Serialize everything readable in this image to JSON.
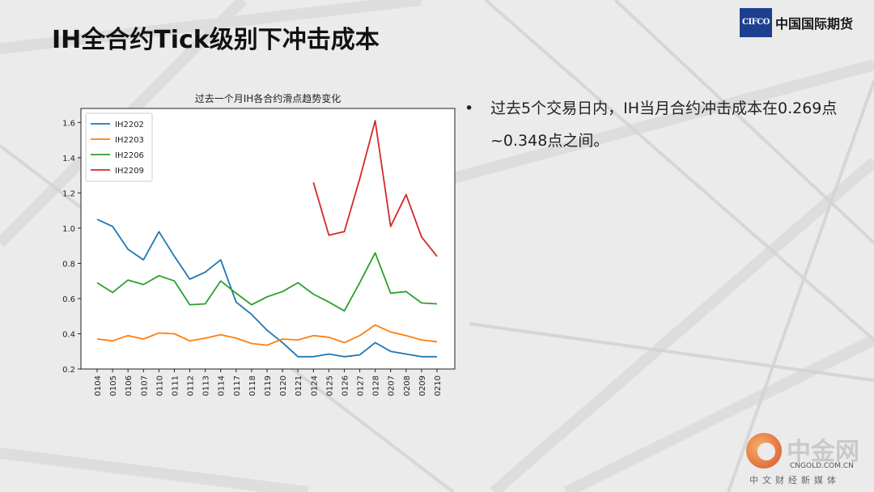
{
  "slide": {
    "title": "IH全合约Tick级别下冲击成本",
    "brand_box": "CIFCO",
    "brand_name": "中国国际期货",
    "bullet_symbol": "•",
    "bullet_text": "过去5个交易日内，IH当月合约冲击成本在0.269点~0.348点之间。"
  },
  "watermark": {
    "name": "中金网",
    "url": "CNGOLD.COM.CN",
    "sub": "中文财经新媒体"
  },
  "colors": {
    "IH2202": "#1f77b4",
    "IH2203": "#ff7f0e",
    "IH2206": "#2ca02c",
    "IH2209": "#d62728"
  },
  "chart_data": {
    "type": "line",
    "title": "过去一个月IH各合约滑点趋势变化",
    "xlabel": "",
    "ylabel": "",
    "categories": [
      "0104",
      "0105",
      "0106",
      "0107",
      "0110",
      "0111",
      "0112",
      "0113",
      "0114",
      "0117",
      "0118",
      "0119",
      "0120",
      "0121",
      "0124",
      "0125",
      "0126",
      "0127",
      "0128",
      "0207",
      "0208",
      "0209",
      "0210"
    ],
    "ylim": [
      0.2,
      1.68
    ],
    "yticks": [
      "0.2",
      "0.4",
      "0.6",
      "0.8",
      "1.0",
      "1.2",
      "1.4",
      "1.6"
    ],
    "grid": false,
    "legend": "top-left",
    "series": [
      {
        "name": "IH2202",
        "values": [
          1.05,
          1.01,
          0.88,
          0.82,
          0.98,
          0.84,
          0.71,
          0.75,
          0.82,
          0.58,
          0.51,
          0.42,
          0.35,
          0.27,
          0.27,
          0.285,
          0.27,
          0.28,
          0.35,
          0.3,
          0.285,
          0.27,
          0.27
        ]
      },
      {
        "name": "IH2203",
        "values": [
          0.37,
          0.36,
          0.39,
          0.37,
          0.405,
          0.4,
          0.36,
          0.375,
          0.395,
          0.375,
          0.345,
          0.335,
          0.37,
          0.365,
          0.39,
          0.38,
          0.35,
          0.39,
          0.45,
          0.41,
          0.39,
          0.365,
          0.355
        ]
      },
      {
        "name": "IH2206",
        "values": [
          0.69,
          0.635,
          0.705,
          0.68,
          0.73,
          0.7,
          0.565,
          0.57,
          0.7,
          0.63,
          0.565,
          0.61,
          0.64,
          0.69,
          0.625,
          0.58,
          0.53,
          0.69,
          0.86,
          0.63,
          0.64,
          0.575,
          0.57
        ]
      },
      {
        "name": "IH2209",
        "values": [
          null,
          null,
          null,
          null,
          null,
          null,
          null,
          null,
          null,
          null,
          null,
          null,
          null,
          null,
          1.26,
          0.96,
          0.98,
          1.28,
          1.61,
          1.01,
          1.19,
          0.95,
          0.84
        ]
      }
    ]
  }
}
